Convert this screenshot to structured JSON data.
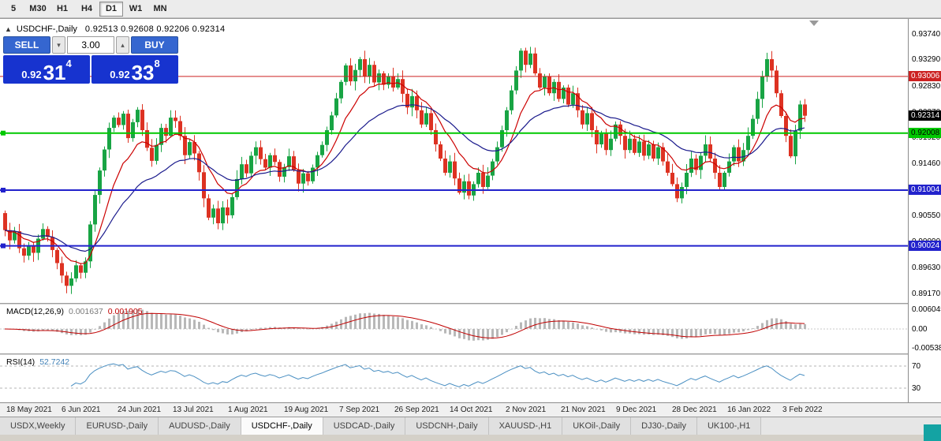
{
  "toolbar": {
    "timeframes": [
      {
        "label": "5",
        "active": false
      },
      {
        "label": "M30",
        "active": false
      },
      {
        "label": "H1",
        "active": false
      },
      {
        "label": "H4",
        "active": false
      },
      {
        "label": "D1",
        "active": true
      },
      {
        "label": "W1",
        "active": false
      },
      {
        "label": "MN",
        "active": false
      }
    ]
  },
  "chart_header": {
    "title": "USDCHF-,Daily",
    "ohlc": "0.92513 0.92608 0.92206 0.92314"
  },
  "trade_panel": {
    "sell_label": "SELL",
    "buy_label": "BUY",
    "volume": "3.00",
    "sell_price": {
      "prefix": "0.92",
      "pips": "31",
      "frac": "4"
    },
    "buy_price": {
      "prefix": "0.92",
      "pips": "33",
      "frac": "8"
    }
  },
  "chart_data": {
    "type": "candlestick",
    "symbol": "USDCHF",
    "timeframe": "Daily",
    "current_ohlc": {
      "open": 0.92513,
      "high": 0.92608,
      "low": 0.92206,
      "close": 0.92314
    },
    "first_open": 0.906,
    "closes": [
      0.903,
      0.9012,
      0.9028,
      0.8998,
      0.8985,
      0.9002,
      0.899,
      0.9015,
      0.9032,
      0.9018,
      0.8995,
      0.8972,
      0.895,
      0.8932,
      0.8945,
      0.8968,
      0.8955,
      0.8975,
      0.904,
      0.9092,
      0.9135,
      0.9172,
      0.921,
      0.9228,
      0.9215,
      0.9235,
      0.9192,
      0.922,
      0.9242,
      0.9206,
      0.9175,
      0.9152,
      0.918,
      0.921,
      0.9196,
      0.9228,
      0.9222,
      0.9196,
      0.9162,
      0.9185,
      0.9165,
      0.9132,
      0.9086,
      0.9052,
      0.9068,
      0.9042,
      0.907,
      0.9056,
      0.9088,
      0.912,
      0.9146,
      0.913,
      0.9161,
      0.9176,
      0.9155,
      0.914,
      0.9162,
      0.915,
      0.9124,
      0.9141,
      0.916,
      0.9136,
      0.9112,
      0.913,
      0.9116,
      0.914,
      0.9162,
      0.918,
      0.9206,
      0.9232,
      0.9262,
      0.9291,
      0.932,
      0.9292,
      0.9312,
      0.9331,
      0.9301,
      0.9321,
      0.929,
      0.9306,
      0.9286,
      0.9301,
      0.9281,
      0.9296,
      0.927,
      0.9246,
      0.9266,
      0.9241,
      0.9216,
      0.9236,
      0.9206,
      0.9181,
      0.9156,
      0.9131,
      0.9151,
      0.9121,
      0.9096,
      0.9116,
      0.9091,
      0.9111,
      0.9131,
      0.9106,
      0.9126,
      0.9151,
      0.9176,
      0.9206,
      0.9241,
      0.9276,
      0.9311,
      0.9346,
      0.9321,
      0.9341,
      0.9306,
      0.9281,
      0.9301,
      0.9271,
      0.9291,
      0.9261,
      0.9281,
      0.9251,
      0.9271,
      0.9241,
      0.9216,
      0.9236,
      0.9206,
      0.9181,
      0.9201,
      0.9171,
      0.9191,
      0.9216,
      0.9196,
      0.9171,
      0.9191,
      0.9166,
      0.9186,
      0.9161,
      0.9181,
      0.9156,
      0.9176,
      0.9151,
      0.9131,
      0.9111,
      0.9086,
      0.9106,
      0.9131,
      0.9156,
      0.9136,
      0.9161,
      0.9181,
      0.9156,
      0.9131,
      0.9106,
      0.9131,
      0.9151,
      0.9176,
      0.9151,
      0.9171,
      0.9196,
      0.9226,
      0.9261,
      0.9301,
      0.9331,
      0.9311,
      0.9271,
      0.9231,
      0.9196,
      0.916,
      0.9205,
      0.92513,
      0.92314
    ],
    "price_axis": {
      "min": 0.89018,
      "max": 0.94018,
      "ticks": [
        "0.93740",
        "0.93290",
        "0.92830",
        "0.92370",
        "0.91920",
        "0.91460",
        "0.91000",
        "0.90550",
        "0.90090",
        "0.89630",
        "0.89170"
      ]
    },
    "hlines": [
      {
        "price": 0.93006,
        "color": "#cc2222",
        "width": 1,
        "handle": false
      },
      {
        "price": 0.92008,
        "color": "#00c800",
        "width": 2,
        "handle": true
      },
      {
        "price": 0.91004,
        "color": "#2222cc",
        "width": 2,
        "handle": true
      },
      {
        "price": 0.90024,
        "color": "#2222cc",
        "width": 2,
        "handle": true
      }
    ],
    "badges": [
      {
        "text": "0.93006",
        "price": 0.93006,
        "bg": "#cc2222",
        "fg": "#ffffff"
      },
      {
        "text": "0.92314",
        "price": 0.92314,
        "bg": "#000000",
        "fg": "#ffffff"
      },
      {
        "text": "0.92008",
        "price": 0.92008,
        "bg": "#00c800",
        "fg": "#000000"
      },
      {
        "text": "0.91004",
        "price": 0.91004,
        "bg": "#2222cc",
        "fg": "#ffffff"
      },
      {
        "text": "0.90024",
        "price": 0.90024,
        "bg": "#2222cc",
        "fg": "#ffffff"
      }
    ],
    "date_labels": [
      "18 May 2021",
      "6 Jun 2021",
      "24 Jun 2021",
      "13 Jul 2021",
      "1 Aug 2021",
      "19 Aug 2021",
      "7 Sep 2021",
      "26 Sep 2021",
      "14 Oct 2021",
      "2 Nov 2021",
      "21 Nov 2021",
      "9 Dec 2021",
      "28 Dec 2021",
      "16 Jan 2022",
      "3 Feb 2022"
    ],
    "macd": {
      "name": "MACD(12,26,9)",
      "value_main": "0.001637",
      "value_signal": "0.001905",
      "axis_labels": [
        "0.006045",
        "0.00",
        "-0.005383"
      ],
      "axis_max": 0.006045
    },
    "rsi": {
      "name": "RSI(14)",
      "value": "52.7242",
      "levels": [
        70,
        30
      ],
      "level_labels": [
        "70",
        "30"
      ]
    },
    "colors": {
      "bull": "#18a444",
      "bear": "#dd3222",
      "ma_fast": "#cc0000",
      "ma_slow": "#1a1a8c",
      "macd_hist": "#b8b8b8",
      "macd_signal": "#c00000",
      "rsi_line": "#4a8fc2",
      "level_dash": "#b4b4b4"
    }
  },
  "tabs": [
    {
      "label": "USDX,Weekly",
      "active": false
    },
    {
      "label": "EURUSD-,Daily",
      "active": false
    },
    {
      "label": "AUDUSD-,Daily",
      "active": false
    },
    {
      "label": "USDCHF-,Daily",
      "active": true
    },
    {
      "label": "USDCAD-,Daily",
      "active": false
    },
    {
      "label": "USDCNH-,Daily",
      "active": false
    },
    {
      "label": "XAUUSD-,H1",
      "active": false
    },
    {
      "label": "UKOil-,Daily",
      "active": false
    },
    {
      "label": "DJ30-,Daily",
      "active": false
    },
    {
      "label": "UK100-,H1",
      "active": false
    }
  ]
}
